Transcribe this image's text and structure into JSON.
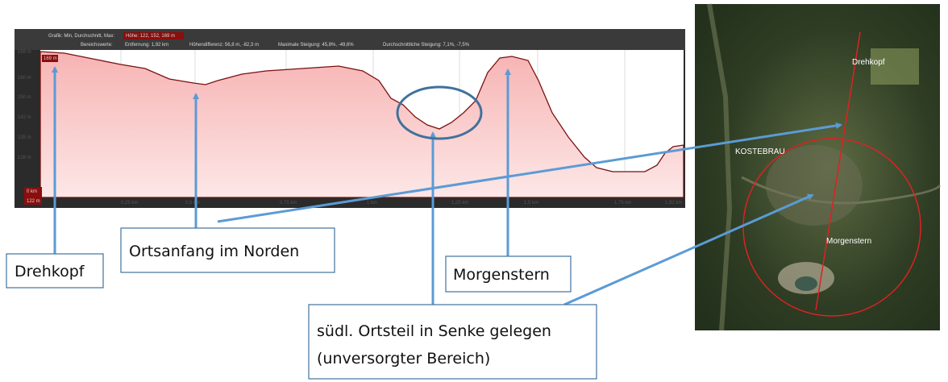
{
  "profile": {
    "toolbar": {
      "graph_label": "Grafik: Min, Durchschnitt, Max:",
      "height_values": "Höhe: 122, 152, 169 m",
      "range_label": "Bereichswerte:",
      "distance": "Entfernung: 1,92 km",
      "height_difference": "Höhendifferenz: 56,8 m, -82,3 m",
      "max_slope": "Maximale Steigung: 45,8%, -49,6%",
      "avg_slope": "Durchschnittliche Steigung: 7,1%, -7,5%"
    },
    "y_labels": [
      "169 m",
      "160 m",
      "150 m",
      "142 m",
      "135 m",
      "128 m"
    ],
    "y_marker_top": "169 m",
    "y_marker_bottom": "122 m",
    "x_start": "0 km",
    "x_labels": [
      "0,25 km",
      "0,5 km",
      "0,75 km",
      "1 km",
      "1,25 km",
      "1,5 km",
      "1,75 km",
      "1,92 km"
    ]
  },
  "map": {
    "labels": [
      "Drehkopf",
      "KOSTEBRAU",
      "Morgenstern"
    ]
  },
  "annotations": {
    "drehkopf": "Drehkopf",
    "north": "Ortsanfang im Norden",
    "morgenstern": "Morgenstern",
    "south_line1": "südl. Ortsteil in Senke gelegen",
    "south_line2": "(unversorgter Bereich)"
  }
}
